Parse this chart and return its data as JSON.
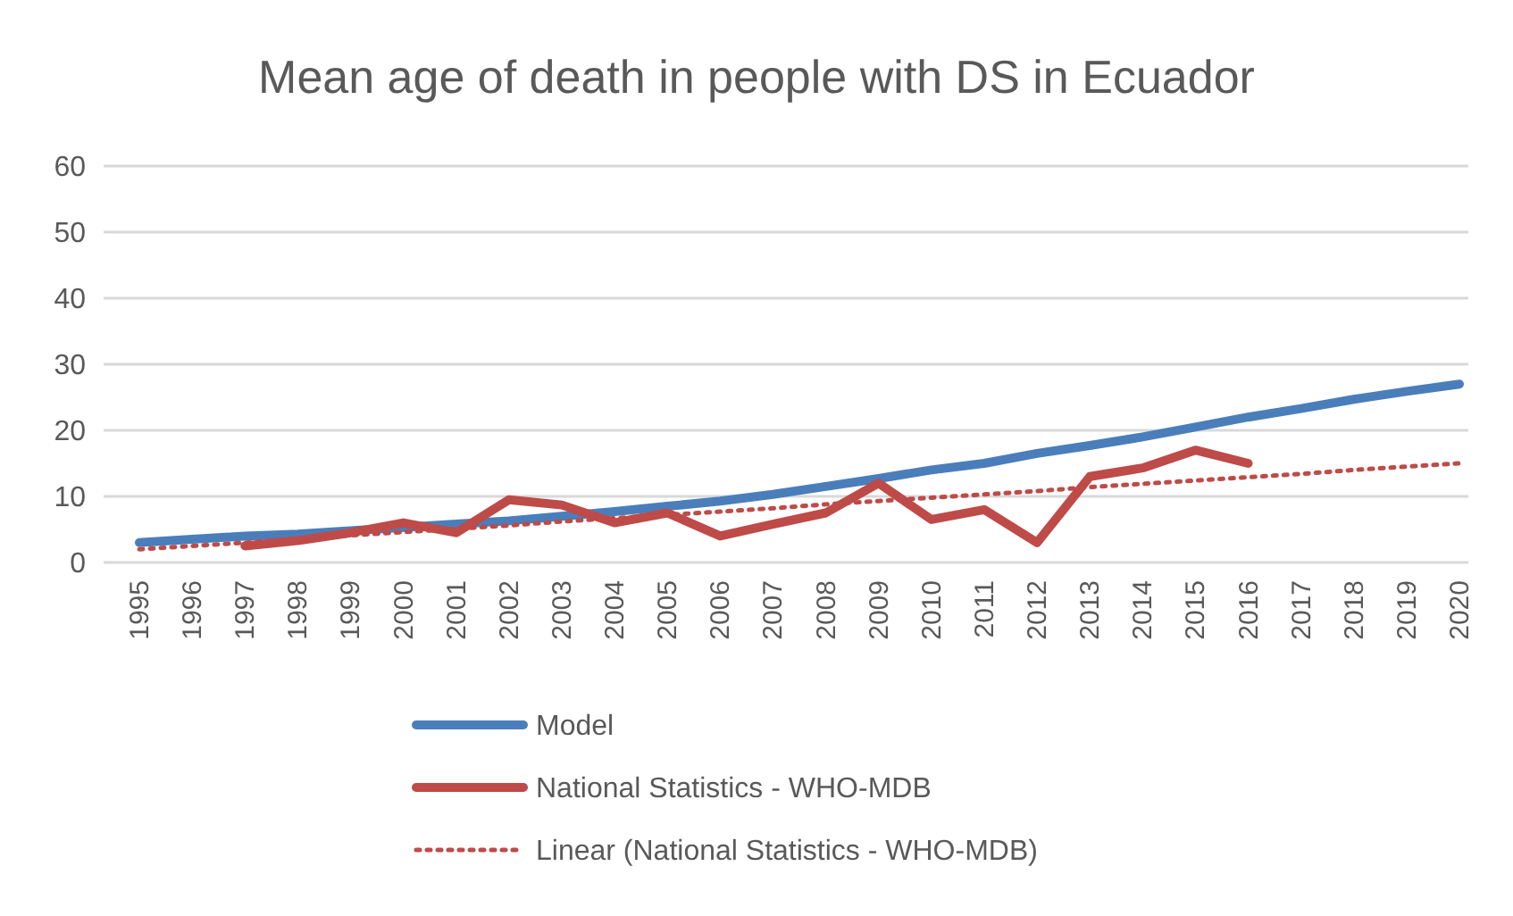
{
  "chart_data": {
    "type": "line",
    "title": "Mean age of death in people with DS in Ecuador",
    "categories": [
      "1995",
      "1996",
      "1997",
      "1998",
      "1999",
      "2000",
      "2001",
      "2002",
      "2003",
      "2004",
      "2005",
      "2006",
      "2007",
      "2008",
      "2009",
      "2010",
      "2011",
      "2012",
      "2013",
      "2014",
      "2015",
      "2016",
      "2017",
      "2018",
      "2019",
      "2020"
    ],
    "ylim": [
      0,
      60
    ],
    "yticks": [
      0,
      10,
      20,
      30,
      40,
      50,
      60
    ],
    "grid": "y",
    "legend": "bottom",
    "marker": "none",
    "series": [
      {
        "name": "Model",
        "color": "#4a7ebb",
        "line_style": "solid",
        "values": [
          3,
          3.5,
          4,
          4.3,
          4.8,
          5.3,
          5.8,
          6.3,
          7,
          7.7,
          8.5,
          9.3,
          10.3,
          11.5,
          12.7,
          14,
          15,
          16.5,
          17.7,
          19,
          20.5,
          22,
          23.3,
          24.7,
          25.9,
          27
        ]
      },
      {
        "name": "National Statistics - WHO-MDB",
        "color": "#be4b48",
        "line_style": "solid",
        "values": [
          null,
          null,
          2.5,
          3.3,
          4.5,
          6,
          4.5,
          9.5,
          8.7,
          6,
          7.5,
          4,
          5.8,
          7.5,
          12,
          6.5,
          8,
          3,
          13,
          14.3,
          17,
          15,
          null,
          null,
          null,
          null
        ]
      },
      {
        "name": "Linear (National Statistics - WHO-MDB)",
        "color": "#be4b48",
        "line_style": "dotted",
        "values": [
          2,
          2.5,
          3,
          3.6,
          4.1,
          4.6,
          5.1,
          5.6,
          6.2,
          6.7,
          7.2,
          7.7,
          8.2,
          8.8,
          9.3,
          9.8,
          10.3,
          10.8,
          11.4,
          11.9,
          12.4,
          12.9,
          13.4,
          14,
          14.5,
          15
        ]
      }
    ]
  }
}
